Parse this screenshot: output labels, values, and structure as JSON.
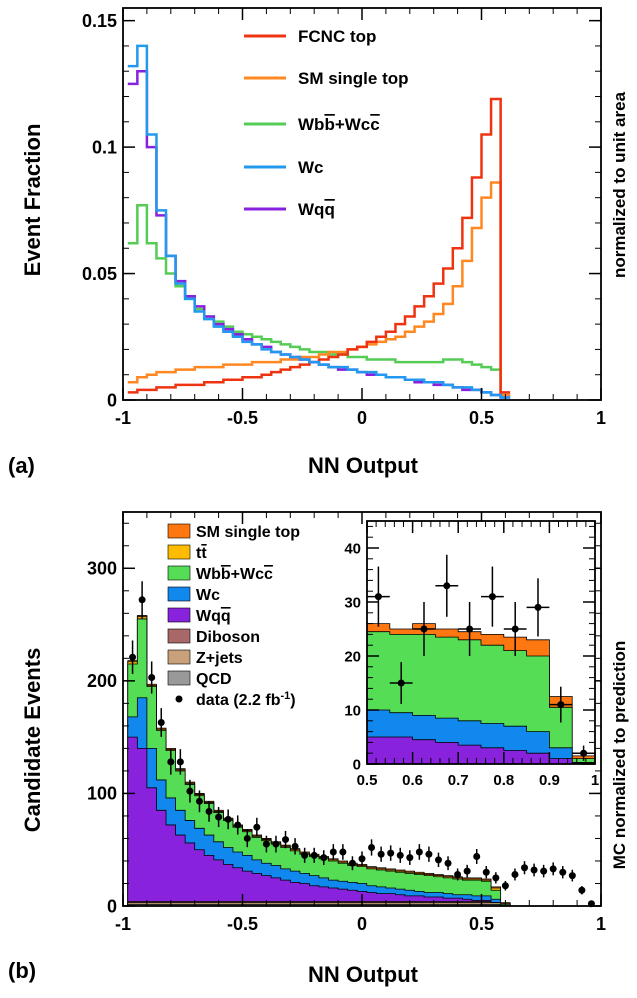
{
  "chart_data": [
    {
      "panel_label": "(a)",
      "type": "line",
      "step": true,
      "xlabel": "NN Output",
      "ylabel": "Event Fraction",
      "right_label": "normalized to unit area",
      "xlim": [
        -1,
        1
      ],
      "ylim": [
        0,
        0.155
      ],
      "xticks": [
        "-1",
        "-0.5",
        "0",
        "0.5",
        "1"
      ],
      "yticks": [
        "0",
        "0.05",
        "0.1",
        "0.15"
      ],
      "xtick_values": [
        -1,
        -0.5,
        0,
        0.5,
        1
      ],
      "ytick_values": [
        0,
        0.05,
        0.1,
        0.15
      ],
      "legend_position": "top-center",
      "bin_edges_start": -0.98,
      "bin_width": 0.04,
      "series": [
        {
          "name": "FCNC top",
          "color": "#ee3311",
          "values": [
            0.003,
            0.004,
            0.004,
            0.005,
            0.005,
            0.006,
            0.006,
            0.006,
            0.007,
            0.007,
            0.008,
            0.008,
            0.009,
            0.009,
            0.01,
            0.011,
            0.012,
            0.013,
            0.014,
            0.015,
            0.016,
            0.017,
            0.018,
            0.02,
            0.021,
            0.023,
            0.025,
            0.027,
            0.03,
            0.033,
            0.037,
            0.041,
            0.046,
            0.052,
            0.06,
            0.072,
            0.088,
            0.105,
            0.119,
            0.003
          ]
        },
        {
          "name": "SM single top",
          "color": "#ff8822",
          "values": [
            0.007,
            0.009,
            0.01,
            0.011,
            0.011,
            0.012,
            0.012,
            0.013,
            0.013,
            0.013,
            0.014,
            0.014,
            0.014,
            0.015,
            0.015,
            0.015,
            0.016,
            0.016,
            0.017,
            0.017,
            0.018,
            0.019,
            0.019,
            0.02,
            0.021,
            0.022,
            0.023,
            0.024,
            0.025,
            0.027,
            0.029,
            0.031,
            0.034,
            0.038,
            0.045,
            0.055,
            0.068,
            0.08,
            0.086,
            0.002
          ]
        },
        {
          "name": "Wbb̄+Wcc̄",
          "color": "#55cc55",
          "values": [
            0.062,
            0.077,
            0.062,
            0.056,
            0.05,
            0.045,
            0.04,
            0.036,
            0.033,
            0.031,
            0.029,
            0.027,
            0.026,
            0.025,
            0.024,
            0.023,
            0.022,
            0.021,
            0.02,
            0.019,
            0.019,
            0.018,
            0.018,
            0.017,
            0.017,
            0.016,
            0.016,
            0.016,
            0.015,
            0.015,
            0.015,
            0.015,
            0.015,
            0.016,
            0.016,
            0.015,
            0.014,
            0.013,
            0.012,
            0.002
          ]
        },
        {
          "name": "Wc",
          "color": "#2299ee",
          "values": [
            0.132,
            0.14,
            0.105,
            0.075,
            0.057,
            0.046,
            0.04,
            0.035,
            0.032,
            0.029,
            0.027,
            0.025,
            0.023,
            0.022,
            0.02,
            0.019,
            0.018,
            0.017,
            0.016,
            0.015,
            0.014,
            0.013,
            0.013,
            0.012,
            0.011,
            0.011,
            0.01,
            0.009,
            0.009,
            0.008,
            0.008,
            0.007,
            0.007,
            0.006,
            0.005,
            0.005,
            0.004,
            0.003,
            0.002,
            0.001
          ]
        },
        {
          "name": "Wqq̄",
          "color": "#8822dd",
          "values": [
            0.125,
            0.13,
            0.1,
            0.073,
            0.057,
            0.047,
            0.041,
            0.037,
            0.033,
            0.03,
            0.028,
            0.026,
            0.024,
            0.022,
            0.021,
            0.019,
            0.018,
            0.017,
            0.016,
            0.015,
            0.014,
            0.013,
            0.012,
            0.012,
            0.011,
            0.01,
            0.01,
            0.009,
            0.009,
            0.008,
            0.007,
            0.007,
            0.006,
            0.006,
            0.005,
            0.004,
            0.004,
            0.003,
            0.002,
            0.001
          ]
        }
      ]
    },
    {
      "panel_label": "(b)",
      "type": "bar",
      "stacked": true,
      "xlabel": "NN Output",
      "ylabel": "Candidate Events",
      "right_label": "MC normalized to prediction",
      "xlim": [
        -1,
        1
      ],
      "ylim": [
        0,
        350
      ],
      "xticks": [
        "-1",
        "-0.5",
        "0",
        "0.5",
        "1"
      ],
      "yticks": [
        "0",
        "100",
        "200",
        "300"
      ],
      "xtick_values": [
        -1,
        -0.5,
        0,
        0.5,
        1
      ],
      "ytick_values": [
        0,
        100,
        200,
        300
      ],
      "legend_position": "top-left",
      "bin_edges_start": -0.98,
      "bin_width": 0.04,
      "legend": [
        "SM single top",
        "tt̄",
        "Wbb̄+Wcc̄",
        "Wc",
        "Wqq̄",
        "Diboson",
        "Z+jets",
        "QCD",
        "data (2.2 fb⁻¹)"
      ],
      "stack_order_bottom_to_top": [
        "QCD",
        "Z+jets",
        "Diboson",
        "Wqq̄",
        "Wc",
        "Wbb̄+Wcc̄",
        "tt̄",
        "SM single top"
      ],
      "stack_colors": {
        "QCD": "#999999",
        "Z+jets": "#c8a07a",
        "Diboson": "#a86868",
        "Wqq̄": "#8822dd",
        "Wc": "#1188ee",
        "Wbb̄+Wcc̄": "#55dd55",
        "tt̄": "#ffbb00",
        "SM single top": "#ff7711"
      },
      "totals": [
        218,
        258,
        197,
        158,
        140,
        122,
        110,
        100,
        93,
        85,
        78,
        72,
        68,
        63,
        60,
        57,
        54,
        51,
        48,
        46,
        44,
        42,
        40,
        38,
        37,
        35,
        34,
        33,
        32,
        31,
        30,
        29,
        28,
        27,
        26,
        25,
        25,
        24,
        17,
        3
      ],
      "w_qq": [
        150,
        140,
        105,
        85,
        72,
        63,
        56,
        50,
        45,
        41,
        37,
        34,
        31,
        29,
        27,
        25,
        23,
        21,
        20,
        18,
        17,
        16,
        15,
        14,
        13,
        12,
        11,
        11,
        10,
        9,
        9,
        8,
        8,
        7,
        7,
        6,
        5,
        5,
        3,
        1
      ],
      "w_c": [
        168,
        185,
        140,
        112,
        96,
        85,
        76,
        69,
        63,
        57,
        52,
        48,
        45,
        41,
        38,
        36,
        33,
        31,
        29,
        27,
        25,
        23,
        22,
        21,
        20,
        18,
        17,
        16,
        15,
        14,
        13,
        12,
        12,
        11,
        10,
        10,
        9,
        9,
        6,
        1
      ],
      "wbb_top": [
        215,
        255,
        195,
        156,
        138,
        120,
        108,
        98,
        91,
        83,
        76,
        70,
        66,
        61,
        58,
        55,
        52,
        49,
        46,
        44,
        42,
        40,
        38,
        36,
        35,
        33,
        32,
        31,
        30,
        29,
        28,
        27,
        26,
        25,
        24,
        23,
        23,
        22,
        14,
        2
      ],
      "data_x": [
        -0.96,
        -0.92,
        -0.88,
        -0.84,
        -0.8,
        -0.76,
        -0.72,
        -0.68,
        -0.64,
        -0.6,
        -0.56,
        -0.52,
        -0.48,
        -0.44,
        -0.4,
        -0.36,
        -0.32,
        -0.28,
        -0.24,
        -0.2,
        -0.16,
        -0.12,
        -0.08,
        -0.04,
        0,
        0.04,
        0.08,
        0.12,
        0.16,
        0.2,
        0.24,
        0.28,
        0.32,
        0.36,
        0.4,
        0.44,
        0.48,
        0.52,
        0.56,
        0.6,
        0.64,
        0.68,
        0.72,
        0.76,
        0.8,
        0.84,
        0.88,
        0.92,
        0.96
      ],
      "data_y": [
        221,
        272,
        203,
        163,
        128,
        128,
        102,
        93,
        84,
        79,
        77,
        72,
        60,
        70,
        55,
        55,
        59,
        53,
        45,
        45,
        43,
        48,
        48,
        38,
        42,
        52,
        46,
        47,
        45,
        43,
        48,
        46,
        41,
        38,
        28,
        31,
        44,
        30,
        25,
        18,
        28,
        34,
        32,
        31,
        33,
        30,
        27,
        14,
        2
      ],
      "inset": {
        "xlim": [
          0.5,
          1
        ],
        "ylim": [
          0,
          45
        ],
        "xticks": [
          "0.5",
          "0.6",
          "0.7",
          "0.8",
          "0.9",
          "1"
        ],
        "yticks": [
          "0",
          "10",
          "20",
          "30",
          "40"
        ],
        "xtick_values": [
          0.5,
          0.6,
          0.7,
          0.8,
          0.9,
          1
        ],
        "ytick_values": [
          0,
          10,
          20,
          30,
          40
        ],
        "bin_edges": [
          0.5,
          0.55,
          0.6,
          0.65,
          0.7,
          0.75,
          0.8,
          0.85,
          0.9,
          0.95,
          1.0
        ],
        "w_qq": [
          5,
          5,
          4.5,
          4,
          3.5,
          3,
          2.5,
          2,
          1,
          0.2
        ],
        "w_c": [
          10,
          9.5,
          9,
          8.5,
          8,
          7.5,
          7,
          6,
          3,
          0.3
        ],
        "wbb_top": [
          24.5,
          24,
          24,
          23.5,
          23,
          22,
          21,
          20,
          10.5,
          1
        ],
        "totals": [
          26,
          25,
          26,
          25,
          24.5,
          24,
          23.5,
          23,
          12.5,
          1.5
        ],
        "data_x": [
          0.525,
          0.575,
          0.625,
          0.675,
          0.725,
          0.775,
          0.825,
          0.875,
          0.925,
          0.975
        ],
        "data_y": [
          31,
          15,
          25,
          33,
          25,
          31,
          25,
          29,
          11,
          2
        ]
      }
    }
  ]
}
